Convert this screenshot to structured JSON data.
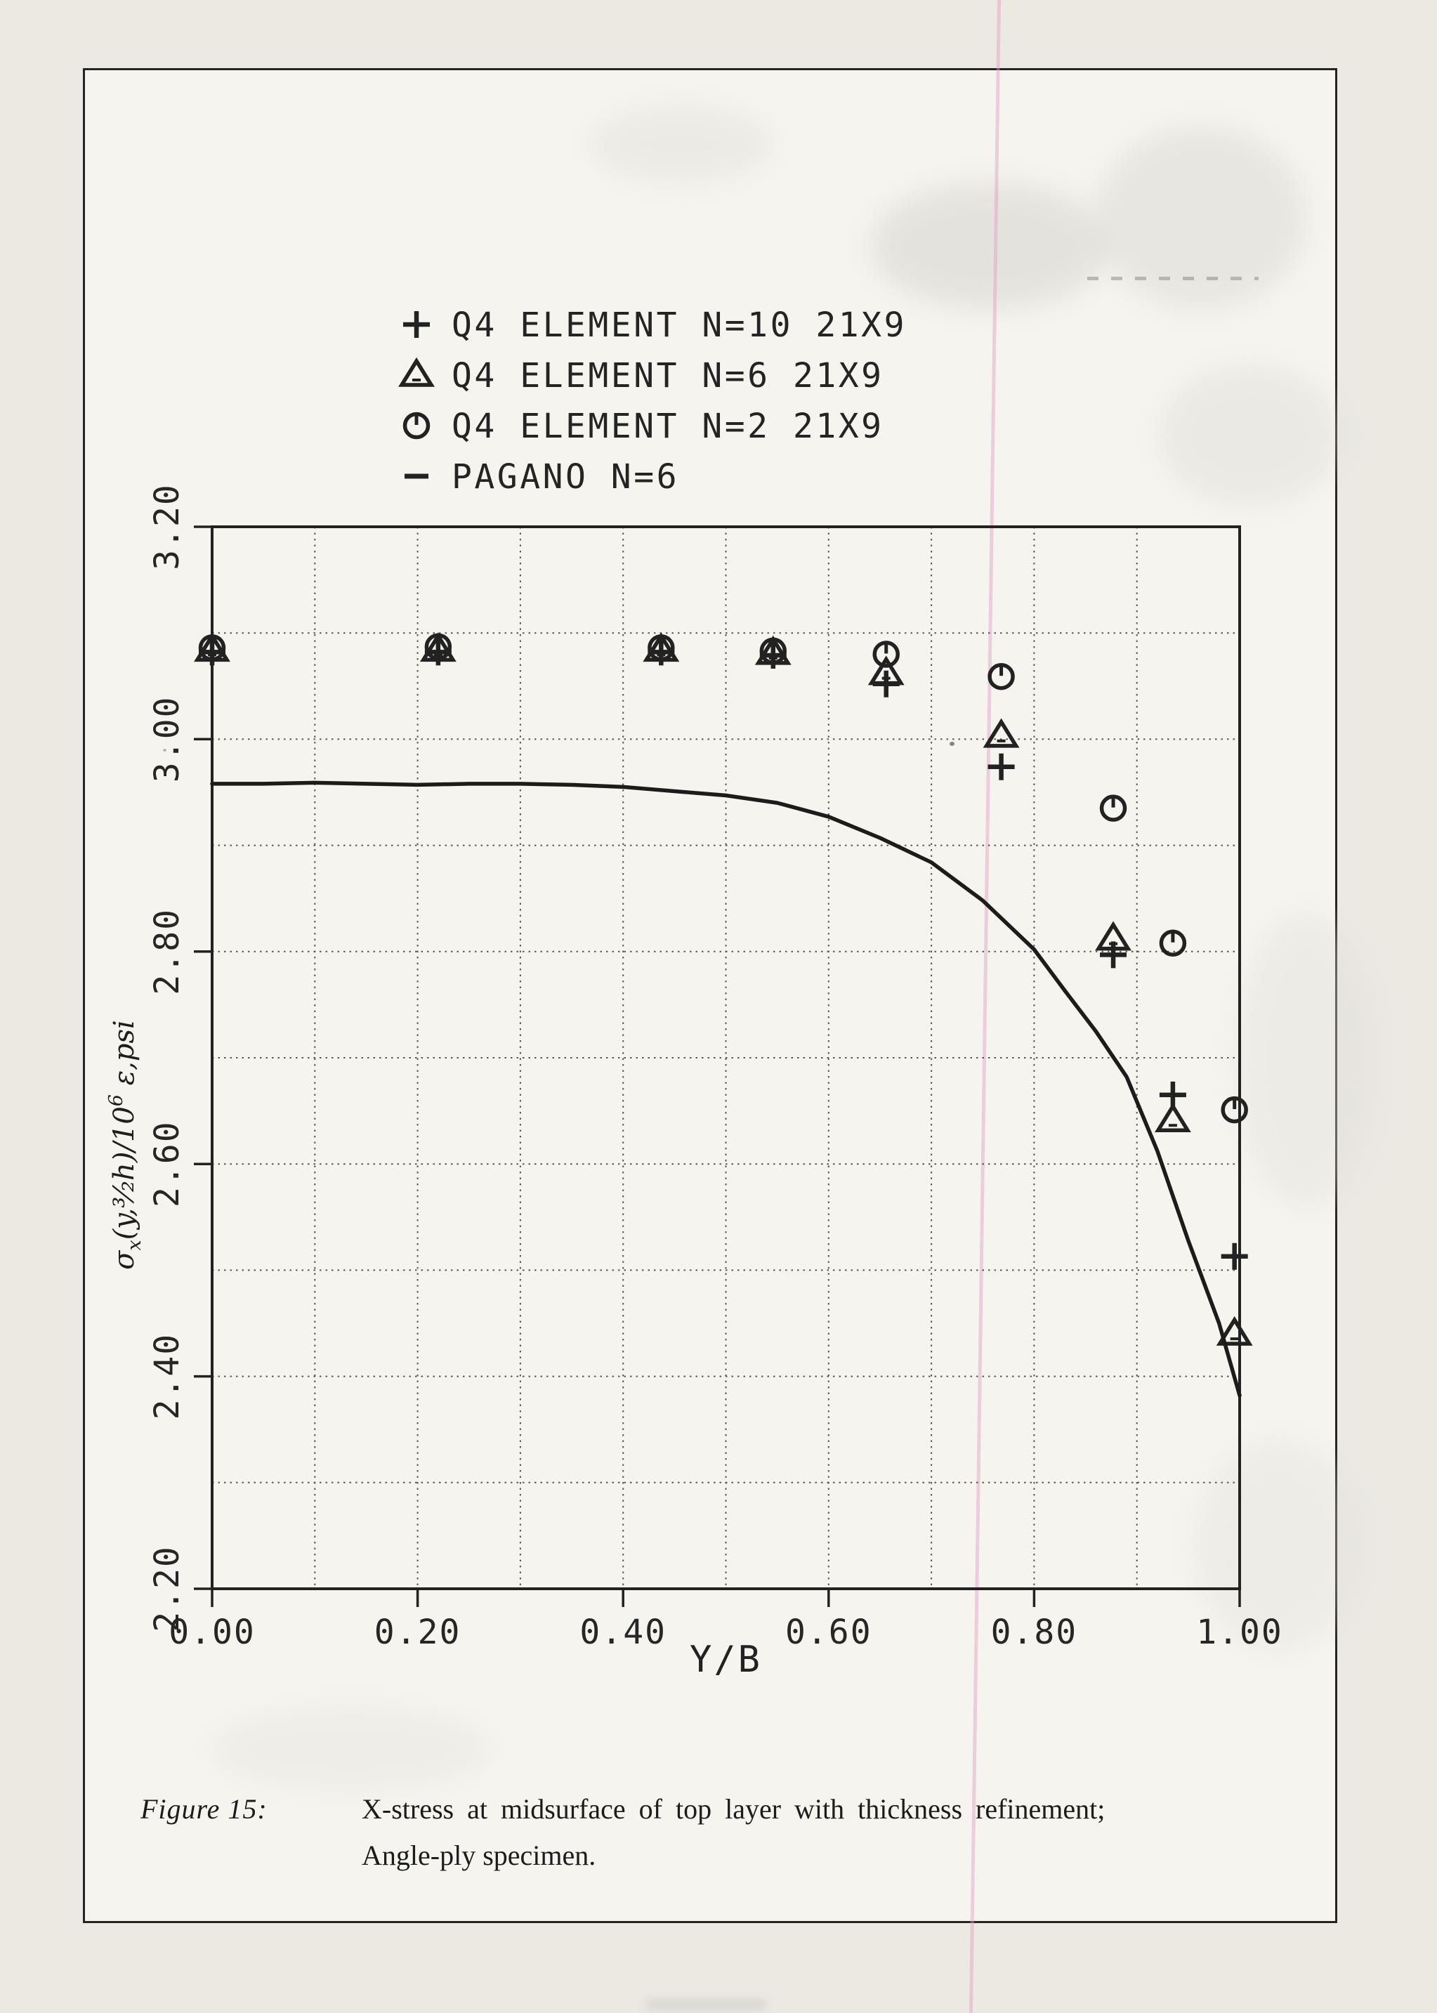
{
  "page": {
    "figure_label": "Figure 15:",
    "caption_line1": "X-stress at midsurface of top layer with thickness refinement;",
    "caption_line2": "Angle-ply specimen."
  },
  "chart_data": {
    "type": "line",
    "title": "",
    "xlabel": "Y/B",
    "ylabel": "σx(y,3/2h)/10⁶ ε,psi",
    "ylabel_parts": [
      {
        "t": "σ",
        "style": "base"
      },
      {
        "t": "x",
        "style": "sub"
      },
      {
        "t": "(y,",
        "style": "base"
      },
      {
        "t": "³⁄₂",
        "style": "base"
      },
      {
        "t": "h)/10",
        "style": "base"
      },
      {
        "t": "6",
        "style": "sup"
      },
      {
        "t": " ε,psi",
        "style": "base"
      }
    ],
    "xlim": [
      0.0,
      1.0
    ],
    "ylim": [
      2.2,
      3.2
    ],
    "grid_step": 0.1,
    "grid_on": true,
    "x_ticks": [
      {
        "value": 0.0,
        "label": "0.00"
      },
      {
        "value": 0.2,
        "label": "0.20"
      },
      {
        "value": 0.4,
        "label": "0.40"
      },
      {
        "value": 0.6,
        "label": "0.60"
      },
      {
        "value": 0.8,
        "label": "0.80"
      },
      {
        "value": 1.0,
        "label": "1.00"
      }
    ],
    "y_ticks": [
      {
        "value": 2.2,
        "label": "2.20"
      },
      {
        "value": 2.4,
        "label": "2.40"
      },
      {
        "value": 2.6,
        "label": "2.60"
      },
      {
        "value": 2.8,
        "label": "2.80"
      },
      {
        "value": 3.0,
        "label": "3.00"
      },
      {
        "value": 3.2,
        "label": "3.20"
      }
    ],
    "legend_position": "top-left-above-plot",
    "legend": [
      {
        "marker": "plus",
        "label": "Q4 ELEMENT N=10 21X9"
      },
      {
        "marker": "triangle",
        "label": "Q4 ELEMENT N=6 21X9"
      },
      {
        "marker": "circle",
        "label": "Q4 ELEMENT N=2 21X9"
      },
      {
        "marker": "dash",
        "label": "PAGANO N=6"
      }
    ],
    "series": [
      {
        "name": "Q4 ELEMENT N=10 21X9",
        "marker": "plus",
        "x": [
          0.0,
          0.22,
          0.437,
          0.546,
          0.656,
          0.768,
          0.877,
          0.935,
          0.995
        ],
        "y": [
          3.082,
          3.082,
          3.082,
          3.079,
          3.052,
          2.974,
          2.797,
          2.665,
          2.513
        ]
      },
      {
        "name": "Q4 ELEMENT N=6 21X9",
        "marker": "triangle",
        "x": [
          0.0,
          0.22,
          0.437,
          0.546,
          0.656,
          0.768,
          0.877,
          0.935,
          0.995
        ],
        "y": [
          3.084,
          3.084,
          3.084,
          3.081,
          3.062,
          3.003,
          2.812,
          2.641,
          2.44
        ]
      },
      {
        "name": "Q4 ELEMENT N=2 21X9",
        "marker": "circle",
        "x": [
          0.0,
          0.22,
          0.437,
          0.546,
          0.656,
          0.768,
          0.877,
          0.935,
          0.995
        ],
        "y": [
          3.086,
          3.087,
          3.086,
          3.083,
          3.08,
          3.059,
          2.935,
          2.808,
          2.651
        ]
      },
      {
        "name": "PAGANO N=6",
        "marker": "none",
        "line": true,
        "x": [
          0.0,
          0.05,
          0.1,
          0.15,
          0.2,
          0.25,
          0.3,
          0.35,
          0.4,
          0.45,
          0.5,
          0.55,
          0.6,
          0.65,
          0.7,
          0.75,
          0.8,
          0.83,
          0.86,
          0.89,
          0.92,
          0.95,
          0.98,
          1.0
        ],
        "y": [
          2.958,
          2.958,
          2.959,
          2.958,
          2.957,
          2.958,
          2.958,
          2.957,
          2.955,
          2.951,
          2.947,
          2.94,
          2.927,
          2.907,
          2.884,
          2.848,
          2.802,
          2.763,
          2.725,
          2.682,
          2.612,
          2.528,
          2.45,
          2.382
        ]
      }
    ],
    "ink_color": "#222222",
    "grid_color": "#3c3c3c"
  }
}
